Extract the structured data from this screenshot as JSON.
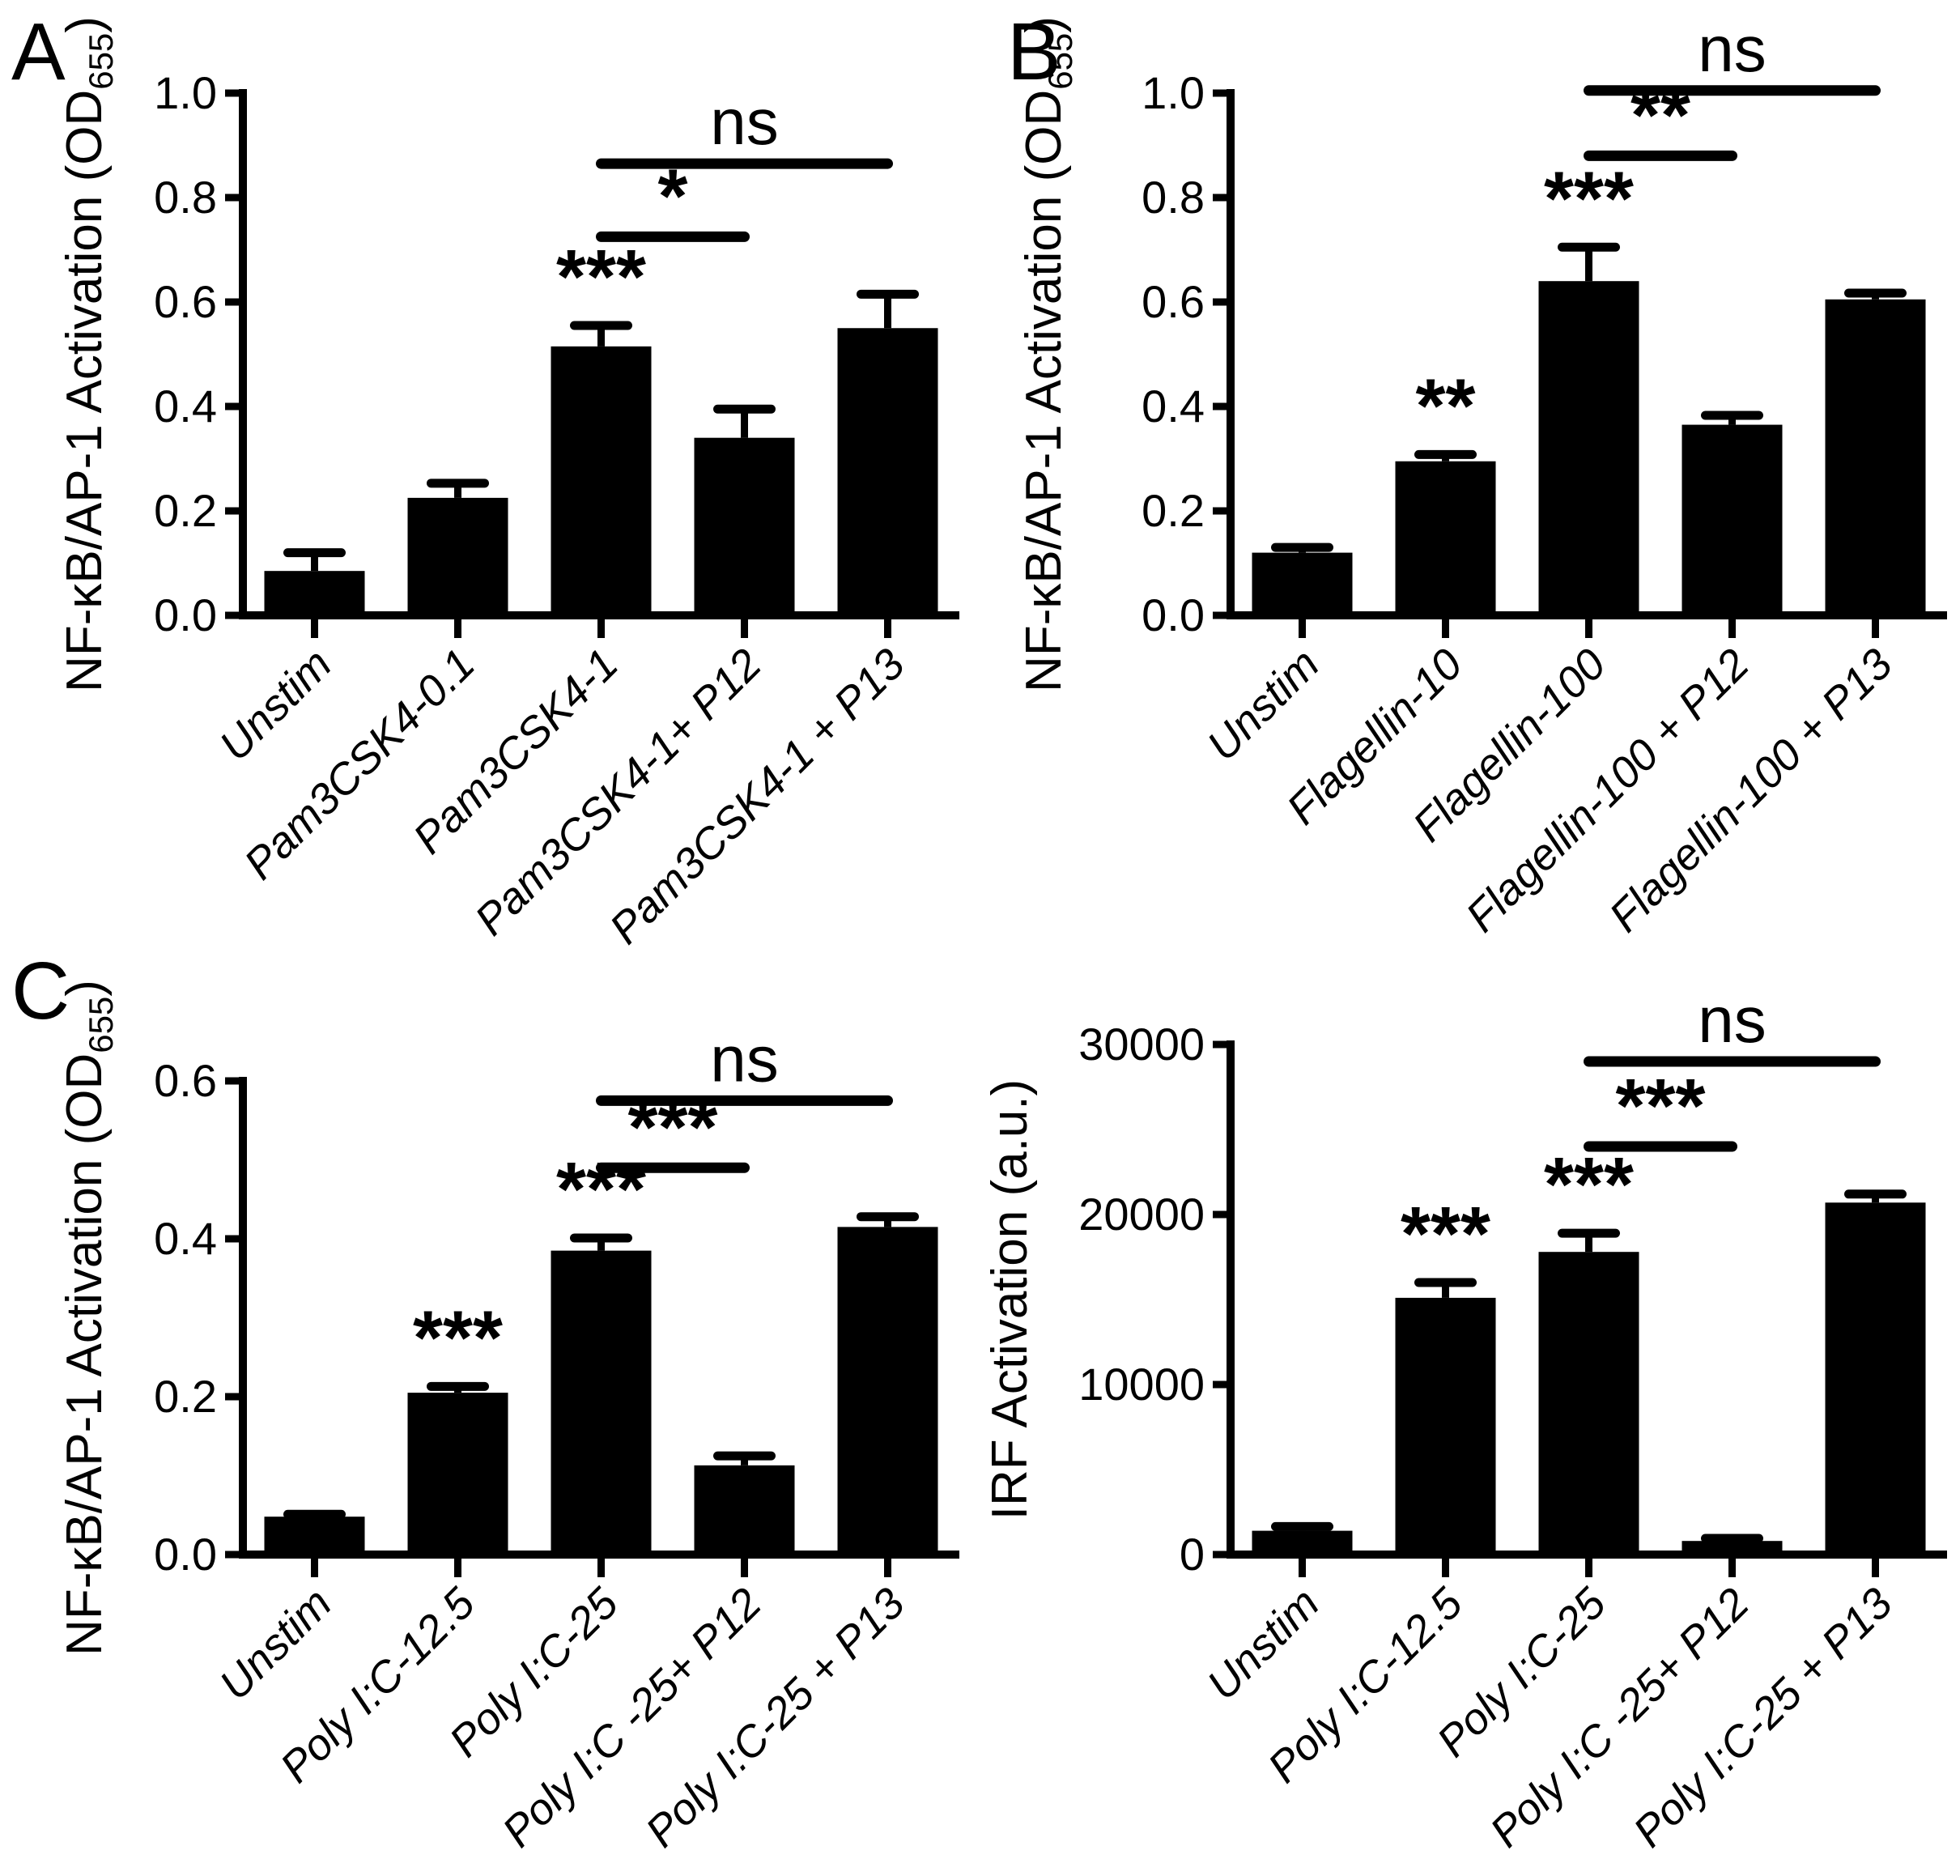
{
  "figure": {
    "background": "#ffffff",
    "ink": "#000000",
    "panel_labels": [
      {
        "text": "A"
      },
      {
        "text": "B"
      },
      {
        "text": "C"
      }
    ]
  },
  "chart_data": [
    {
      "panel": "A",
      "type": "bar",
      "title": "",
      "xlabel": "",
      "ylabel_segments": [
        {
          "text": "NF-κB/AP-1 Activation (OD"
        },
        {
          "text": "655",
          "sub": true
        },
        {
          "text": ")"
        }
      ],
      "ylim": [
        0,
        1.0
      ],
      "grid": false,
      "legend_position": "none",
      "yticks": [
        {
          "v": 0.0,
          "label": "0.0"
        },
        {
          "v": 0.2,
          "label": "0.2"
        },
        {
          "v": 0.4,
          "label": "0.4"
        },
        {
          "v": 0.6,
          "label": "0.6"
        },
        {
          "v": 0.8,
          "label": "0.8"
        },
        {
          "v": 1.0,
          "label": "1.0"
        }
      ],
      "categories": [
        "Unstim",
        "Pam3CSK4-0.1",
        "Pam3CSK4-1",
        "Pam3CSK4-1+ P12",
        "Pam3CSK4-1 + P13"
      ],
      "values": [
        0.085,
        0.225,
        0.515,
        0.34,
        0.55
      ],
      "errors": [
        0.035,
        0.028,
        0.04,
        0.055,
        0.065
      ],
      "bar_stars": [
        "",
        "",
        "***",
        "",
        ""
      ],
      "significance": [
        {
          "from": 2,
          "to": 3,
          "at": 0.725,
          "label": "*"
        },
        {
          "from": 2,
          "to": 4,
          "at": 0.865,
          "label": "ns"
        }
      ]
    },
    {
      "panel": "B",
      "type": "bar",
      "title": "",
      "xlabel": "",
      "ylabel_segments": [
        {
          "text": "NF-κB/AP-1 Activation (OD"
        },
        {
          "text": "655",
          "sub": true
        },
        {
          "text": ")"
        }
      ],
      "ylim": [
        0,
        1.0
      ],
      "grid": false,
      "legend_position": "none",
      "yticks": [
        {
          "v": 0.0,
          "label": "0.0"
        },
        {
          "v": 0.2,
          "label": "0.2"
        },
        {
          "v": 0.4,
          "label": "0.4"
        },
        {
          "v": 0.6,
          "label": "0.6"
        },
        {
          "v": 0.8,
          "label": "0.8"
        },
        {
          "v": 1.0,
          "label": "1.0"
        }
      ],
      "categories": [
        "Unstim",
        "Flagellin-10",
        "Flagellin-100",
        "Flagellin-100 + P12",
        "Flagellin-100 + P13"
      ],
      "values": [
        0.12,
        0.295,
        0.64,
        0.365,
        0.605
      ],
      "errors": [
        0.01,
        0.013,
        0.065,
        0.018,
        0.012
      ],
      "bar_stars": [
        "",
        "**",
        "***",
        "",
        ""
      ],
      "significance": [
        {
          "from": 2,
          "to": 3,
          "at": 0.88,
          "label": "**"
        },
        {
          "from": 2,
          "to": 4,
          "at": 1.005,
          "label": "ns"
        }
      ]
    },
    {
      "panel": "C-left",
      "type": "bar",
      "title": "",
      "xlabel": "",
      "ylabel_segments": [
        {
          "text": "NF-κB/AP-1 Activation (OD"
        },
        {
          "text": "655",
          "sub": true
        },
        {
          "text": ")"
        }
      ],
      "ylim": [
        0,
        0.6
      ],
      "grid": false,
      "legend_position": "none",
      "yticks": [
        {
          "v": 0.0,
          "label": "0.0"
        },
        {
          "v": 0.2,
          "label": "0.2"
        },
        {
          "v": 0.4,
          "label": "0.4"
        },
        {
          "v": 0.6,
          "label": "0.6"
        }
      ],
      "categories": [
        "Unstim",
        "Poly I:C-12.5",
        "Poly I:C-25",
        "Poly I:C -25+ P12",
        "Poly I:C-25 + P13"
      ],
      "values": [
        0.048,
        0.205,
        0.385,
        0.113,
        0.415
      ],
      "errors": [
        0.003,
        0.008,
        0.016,
        0.012,
        0.013
      ],
      "bar_stars": [
        "",
        "***",
        "***",
        "",
        ""
      ],
      "significance": [
        {
          "from": 2,
          "to": 3,
          "at": 0.49,
          "label": "***"
        },
        {
          "from": 2,
          "to": 4,
          "at": 0.575,
          "label": "ns"
        }
      ]
    },
    {
      "panel": "C-right",
      "type": "bar",
      "title": "",
      "xlabel": "",
      "ylabel_segments": [
        {
          "text": "IRF Activation (a.u.)"
        }
      ],
      "ylim": [
        0,
        30000
      ],
      "grid": false,
      "legend_position": "none",
      "yticks": [
        {
          "v": 0,
          "label": "0"
        },
        {
          "v": 10000,
          "label": "10000"
        },
        {
          "v": 20000,
          "label": "20000"
        },
        {
          "v": 30000,
          "label": "30000"
        }
      ],
      "categories": [
        "Unstim",
        "Poly I:C-12.5",
        "Poly I:C-25",
        "Poly I:C -25+ P12",
        "Poly I:C-25 + P13"
      ],
      "values": [
        1400,
        15100,
        17800,
        800,
        20700
      ],
      "errors": [
        250,
        900,
        1100,
        150,
        500
      ],
      "bar_stars": [
        "",
        "***",
        "***",
        "",
        ""
      ],
      "significance": [
        {
          "from": 2,
          "to": 3,
          "at": 24000,
          "label": "***"
        },
        {
          "from": 2,
          "to": 4,
          "at": 29000,
          "label": "ns"
        }
      ]
    }
  ]
}
